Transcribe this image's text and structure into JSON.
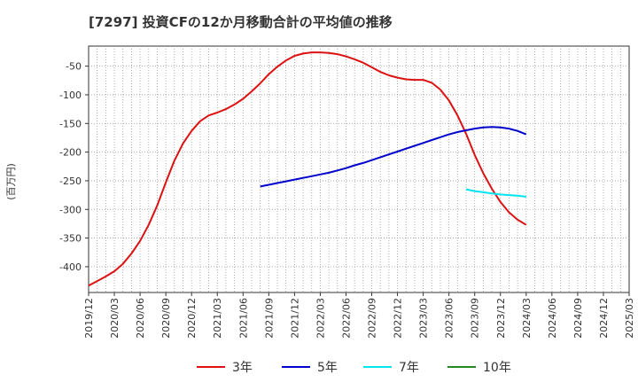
{
  "chart_data": {
    "type": "line",
    "title": "[7297]  投資CFの12か月移動合計の平均値の推移",
    "ylabel": "(百万円)",
    "xlabel": "",
    "ylim": [
      -445,
      -15
    ],
    "yticks": [
      -50,
      -100,
      -150,
      -200,
      -250,
      -300,
      -350,
      -400
    ],
    "xlim": [
      "2019-12",
      "2025-03"
    ],
    "xticks": [
      "2019/12",
      "2020/03",
      "2020/06",
      "2020/09",
      "2020/12",
      "2021/03",
      "2021/06",
      "2021/09",
      "2021/12",
      "2022/03",
      "2022/06",
      "2022/09",
      "2022/12",
      "2023/03",
      "2023/06",
      "2023/09",
      "2023/12",
      "2024/03",
      "2024/06",
      "2024/09",
      "2024/12",
      "2025/03"
    ],
    "grid": true,
    "legend_position": "bottom",
    "series": [
      {
        "name": "3年",
        "color": "#dd1111",
        "points": [
          [
            "2019-12",
            -433
          ],
          [
            "2020-01",
            -425
          ],
          [
            "2020-02",
            -417
          ],
          [
            "2020-03",
            -408
          ],
          [
            "2020-04",
            -395
          ],
          [
            "2020-05",
            -377
          ],
          [
            "2020-06",
            -355
          ],
          [
            "2020-07",
            -327
          ],
          [
            "2020-08",
            -293
          ],
          [
            "2020-09",
            -253
          ],
          [
            "2020-10",
            -215
          ],
          [
            "2020-11",
            -185
          ],
          [
            "2020-12",
            -163
          ],
          [
            "2021-01",
            -146
          ],
          [
            "2021-02",
            -136
          ],
          [
            "2021-03",
            -131
          ],
          [
            "2021-04",
            -125
          ],
          [
            "2021-05",
            -117
          ],
          [
            "2021-06",
            -107
          ],
          [
            "2021-07",
            -94
          ],
          [
            "2021-08",
            -80
          ],
          [
            "2021-09",
            -64
          ],
          [
            "2021-10",
            -51
          ],
          [
            "2021-11",
            -40
          ],
          [
            "2021-12",
            -32
          ],
          [
            "2022-01",
            -28
          ],
          [
            "2022-02",
            -26
          ],
          [
            "2022-03",
            -26
          ],
          [
            "2022-04",
            -27
          ],
          [
            "2022-05",
            -29
          ],
          [
            "2022-06",
            -33
          ],
          [
            "2022-07",
            -38
          ],
          [
            "2022-08",
            -44
          ],
          [
            "2022-09",
            -52
          ],
          [
            "2022-10",
            -60
          ],
          [
            "2022-11",
            -66
          ],
          [
            "2022-12",
            -70
          ],
          [
            "2023-01",
            -73
          ],
          [
            "2023-02",
            -74
          ],
          [
            "2023-03",
            -74
          ],
          [
            "2023-04",
            -79
          ],
          [
            "2023-05",
            -91
          ],
          [
            "2023-06",
            -110
          ],
          [
            "2023-07",
            -136
          ],
          [
            "2023-08",
            -168
          ],
          [
            "2023-09",
            -205
          ],
          [
            "2023-10",
            -237
          ],
          [
            "2023-11",
            -264
          ],
          [
            "2023-12",
            -287
          ],
          [
            "2024-01",
            -305
          ],
          [
            "2024-02",
            -318
          ],
          [
            "2024-03",
            -327
          ]
        ]
      },
      {
        "name": "5年",
        "color": "#0000cc",
        "points": [
          [
            "2021-08",
            -260
          ],
          [
            "2021-09",
            -257
          ],
          [
            "2021-10",
            -254
          ],
          [
            "2021-11",
            -251
          ],
          [
            "2021-12",
            -248
          ],
          [
            "2022-01",
            -245
          ],
          [
            "2022-02",
            -242
          ],
          [
            "2022-03",
            -239
          ],
          [
            "2022-04",
            -236
          ],
          [
            "2022-05",
            -232
          ],
          [
            "2022-06",
            -228
          ],
          [
            "2022-07",
            -223
          ],
          [
            "2022-08",
            -219
          ],
          [
            "2022-09",
            -214
          ],
          [
            "2022-10",
            -209
          ],
          [
            "2022-11",
            -204
          ],
          [
            "2022-12",
            -199
          ],
          [
            "2023-01",
            -194
          ],
          [
            "2023-02",
            -189
          ],
          [
            "2023-03",
            -184
          ],
          [
            "2023-04",
            -179
          ],
          [
            "2023-05",
            -174
          ],
          [
            "2023-06",
            -169
          ],
          [
            "2023-07",
            -165
          ],
          [
            "2023-08",
            -162
          ],
          [
            "2023-09",
            -159
          ],
          [
            "2023-10",
            -157
          ],
          [
            "2023-11",
            -156
          ],
          [
            "2023-12",
            -157
          ],
          [
            "2024-01",
            -159
          ],
          [
            "2024-02",
            -163
          ],
          [
            "2024-03",
            -169
          ]
        ]
      },
      {
        "name": "7年",
        "color": "#00e5ee",
        "points": [
          [
            "2023-08",
            -265
          ],
          [
            "2023-09",
            -268
          ],
          [
            "2023-10",
            -270
          ],
          [
            "2023-11",
            -272
          ],
          [
            "2023-12",
            -274
          ],
          [
            "2024-01",
            -275
          ],
          [
            "2024-02",
            -276
          ],
          [
            "2024-03",
            -278
          ]
        ]
      },
      {
        "name": "10年",
        "color": "#228822",
        "points": []
      }
    ]
  }
}
